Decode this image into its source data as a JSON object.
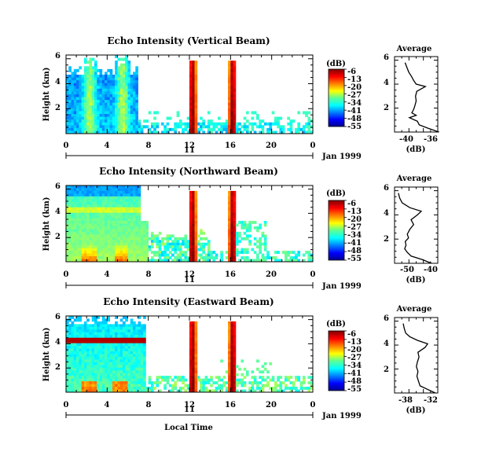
{
  "chart_data": {
    "type": "heatmap",
    "time_ticks": [
      "0",
      "4",
      "8",
      "12",
      "16",
      "20",
      "0"
    ],
    "height_ticks": [
      "6",
      "4",
      "2"
    ],
    "date_label": "11",
    "date_suffix": "Jan 1999",
    "xlabel": "Local Time",
    "ylabel": "Height (km)",
    "colorbar": {
      "unit": "(dB)",
      "ticks": [
        "-6",
        "-13",
        "-20",
        "-27",
        "-34",
        "-41",
        "-48",
        "-55"
      ]
    },
    "profile_title": "Average",
    "profile_xlabel": "(dB)",
    "panels": [
      {
        "title": "Echo Intensity (Vertical Beam)",
        "profile": {
          "xticks": [
            "-40",
            "-36"
          ],
          "heights": [
            0.0,
            0.3,
            0.6,
            0.9,
            1.2,
            1.4,
            1.6,
            1.9,
            2.2,
            2.6,
            3.0,
            3.4,
            3.8,
            4.0,
            4.3,
            4.6,
            5.0,
            5.4,
            5.8
          ],
          "values": [
            -34.8,
            -36.5,
            -38.0,
            -38.3,
            -39.6,
            -38.5,
            -39.2,
            -38.9,
            -38.7,
            -38.5,
            -38.6,
            -38.4,
            -37.0,
            -38.5,
            -38.9,
            -39.2,
            -39.7,
            -40.0,
            -40.3
          ]
        }
      },
      {
        "title": "Echo Intensity (Northward Beam)",
        "profile": {
          "xticks": [
            "-50",
            "-40"
          ],
          "heights": [
            0.0,
            0.3,
            0.6,
            0.9,
            1.2,
            1.5,
            1.8,
            2.1,
            2.4,
            2.8,
            3.2,
            3.6,
            4.0,
            4.3,
            4.6,
            5.0,
            5.4,
            5.8
          ],
          "values": [
            -40.5,
            -44.0,
            -48.5,
            -50.0,
            -51.0,
            -50.5,
            -50.8,
            -49.5,
            -50.0,
            -49.0,
            -47.5,
            -48.5,
            -46.0,
            -44.5,
            -49.0,
            -52.0,
            -53.0,
            -53.5
          ]
        }
      },
      {
        "title": "Echo Intensity (Eastward Beam)",
        "profile": {
          "xticks": [
            "-38",
            "-32"
          ],
          "heights": [
            0.0,
            0.3,
            0.6,
            1.0,
            1.4,
            1.8,
            2.2,
            2.6,
            3.0,
            3.4,
            3.8,
            4.1,
            4.4,
            4.7,
            5.0,
            5.4,
            5.8
          ],
          "values": [
            -32.0,
            -33.5,
            -35.0,
            -35.3,
            -35.6,
            -35.4,
            -35.7,
            -35.5,
            -35.2,
            -35.4,
            -34.0,
            -33.5,
            -35.5,
            -37.0,
            -37.8,
            -38.1,
            -38.3
          ]
        }
      }
    ]
  }
}
